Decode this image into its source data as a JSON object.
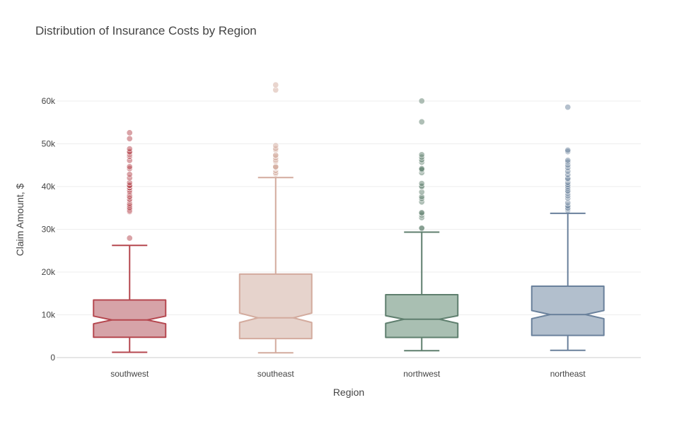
{
  "chart_data": {
    "type": "box",
    "title": "Distribution of Insurance Costs by Region",
    "xlabel": "Region",
    "ylabel": "Claim Amount, $",
    "ylim": [
      -1000,
      70000
    ],
    "y_ticks": [
      0,
      10000,
      20000,
      30000,
      40000,
      50000,
      60000
    ],
    "y_tick_labels": [
      "0",
      "10k",
      "20k",
      "30k",
      "40k",
      "50k",
      "60k"
    ],
    "grid": true,
    "notched": true,
    "categories": [
      "southwest",
      "southeast",
      "northwest",
      "northeast"
    ],
    "series": [
      {
        "category": "southwest",
        "color": "#b5474f",
        "fill": "#d6a3a8",
        "min": 1241,
        "q1": 4747,
        "median": 8799,
        "q3": 13463,
        "max": 26236,
        "notch_low": 7900,
        "notch_high": 9700,
        "outliers": [
          27941,
          34166,
          34472,
          34838,
          35147,
          35585,
          36021,
          36580,
          36910,
          37079,
          37484,
          37701,
          38126,
          38511,
          38746,
          38998,
          39241,
          39611,
          39725,
          40182,
          40273,
          40904,
          41999,
          42856,
          44202,
          44641,
          46113,
          47055,
          47496,
          47928,
          48173,
          48824,
          51195,
          52591
        ]
      },
      {
        "category": "southeast",
        "color": "#d3ab9e",
        "fill": "#e6d3cc",
        "min": 1122,
        "q1": 4441,
        "median": 9294,
        "q3": 19526,
        "max": 42112,
        "notch_low": 8200,
        "notch_high": 10400,
        "outliers": [
          42983,
          43254,
          43754,
          44260,
          44423,
          44585,
          44641,
          45863,
          46200,
          46718,
          47269,
          47305,
          48549,
          48885,
          49577,
          62593,
          63770
        ]
      },
      {
        "category": "northwest",
        "color": "#5f7f6e",
        "fill": "#a9bfb2",
        "min": 1621,
        "q1": 4720,
        "median": 8966,
        "q3": 14712,
        "max": 29330,
        "notch_low": 8000,
        "notch_high": 9800,
        "outliers": [
          30167,
          30284,
          32734,
          33308,
          33733,
          33907,
          36397,
          37165,
          37607,
          38709,
          39871,
          40103,
          40720,
          43254,
          43896,
          43943,
          44202,
          45702,
          46255,
          46889,
          47462,
          55135,
          60021
        ]
      },
      {
        "category": "northeast",
        "color": "#6a819c",
        "fill": "#b2bfcd",
        "min": 1695,
        "q1": 5194,
        "median": 10058,
        "q3": 16687,
        "max": 33733,
        "notch_low": 9100,
        "notch_high": 11000,
        "outliers": [
          34439,
          34806,
          35069,
          35491,
          36197,
          37270,
          37829,
          38344,
          38792,
          39048,
          39556,
          39983,
          40419,
          40941,
          41661,
          41919,
          42760,
          43578,
          44400,
          45008,
          45710,
          46130,
          48173,
          48517,
          58571
        ]
      }
    ]
  }
}
